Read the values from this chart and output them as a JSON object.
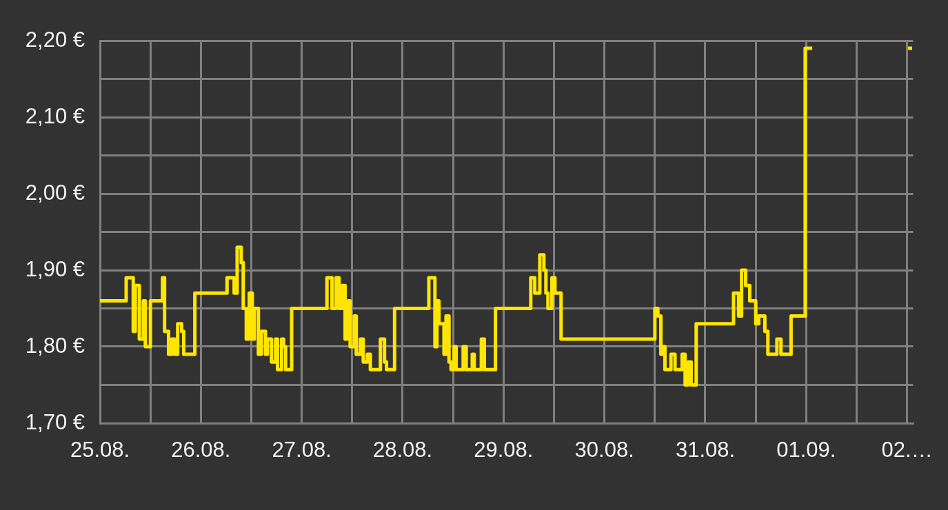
{
  "chart_data": {
    "type": "step",
    "color": "#ffe500",
    "x": [
      "--08-25T00:00",
      "--08-25T06:14",
      "--08-25T07:55",
      "--08-25T08:24",
      "--08-25T09:22",
      "--08-25T10:19",
      "--08-25T10:48",
      "--08-25T12:00",
      "--08-25T14:53",
      "--08-25T15:22",
      "--08-25T16:19",
      "--08-25T17:02",
      "--08-25T17:46",
      "--08-25T18:29",
      "--08-25T19:26",
      "--08-25T19:55",
      "--08-25T22:34",
      "--08-26T06:14",
      "--08-26T07:55",
      "--08-26T08:38",
      "--08-26T09:36",
      "--08-26T10:05",
      "--08-26T10:48",
      "--08-26T11:31",
      "--08-26T12:14",
      "--08-26T12:43",
      "--08-26T13:41",
      "--08-26T14:24",
      "--08-26T15:22",
      "--08-26T15:50",
      "--08-26T16:48",
      "--08-26T17:46",
      "--08-26T18:14",
      "--08-26T19:12",
      "--08-26T19:41",
      "--08-26T20:10",
      "--08-26T21:36",
      "--08-27T06:00",
      "--08-27T07:12",
      "--08-27T08:10",
      "--08-27T08:53",
      "--08-27T09:36",
      "--08-27T10:19",
      "--08-27T11:02",
      "--08-27T11:31",
      "--08-27T12:29",
      "--08-27T12:58",
      "--08-27T13:55",
      "--08-27T14:38",
      "--08-27T15:36",
      "--08-27T16:19",
      "--08-27T18:43",
      "--08-27T19:41",
      "--08-27T20:10",
      "--08-27T22:05",
      "--08-28T06:14",
      "--08-28T07:41",
      "--08-28T08:10",
      "--08-28T08:38",
      "--08-28T09:50",
      "--08-28T10:19",
      "--08-28T11:02",
      "--08-28T11:31",
      "--08-28T12:14",
      "--08-28T12:43",
      "--08-28T14:24",
      "--08-28T15:07",
      "--08-28T16:34",
      "--08-28T17:02",
      "--08-28T18:43",
      "--08-28T19:26",
      "--08-28T22:05",
      "--08-29T06:29",
      "--08-29T07:26",
      "--08-29T08:38",
      "--08-29T09:36",
      "--08-29T10:05",
      "--08-29T10:34",
      "--08-29T11:31",
      "--08-29T12:14",
      "--08-29T13:41",
      "--08-30T12:00",
      "--08-30T12:43",
      "--08-30T13:26",
      "--08-30T13:55",
      "--08-30T14:24",
      "--08-30T15:50",
      "--08-30T16:48",
      "--08-30T18:29",
      "--08-30T19:12",
      "--08-30T19:55",
      "--08-30T20:38",
      "--08-30T21:50",
      "--08-31T06:43",
      "--08-31T07:55",
      "--08-31T08:38",
      "--08-31T09:36",
      "--08-31T10:34",
      "--08-31T12:00",
      "--08-31T12:43",
      "--08-31T14:10",
      "--08-31T14:53",
      "--08-31T17:02",
      "--08-31T18:00",
      "--08-31T20:24",
      "--08-31T23:46",
      "--09-01T01:26",
      "--09-01T01:41",
      "--09-02T00:14",
      "--09-02T01:12"
    ],
    "values": [
      1.86,
      1.89,
      1.82,
      1.88,
      1.81,
      1.86,
      1.8,
      1.86,
      1.89,
      1.82,
      1.79,
      1.81,
      1.79,
      1.83,
      1.82,
      1.79,
      1.87,
      1.89,
      1.87,
      1.93,
      1.91,
      1.85,
      1.81,
      1.87,
      1.81,
      1.85,
      1.79,
      1.82,
      1.79,
      1.81,
      1.78,
      1.81,
      1.77,
      1.81,
      1.8,
      1.77,
      1.85,
      1.89,
      1.85,
      1.89,
      1.85,
      1.88,
      1.81,
      1.86,
      1.8,
      1.84,
      1.79,
      1.81,
      1.78,
      1.79,
      1.77,
      1.81,
      1.78,
      1.77,
      1.85,
      1.89,
      1.8,
      1.86,
      1.83,
      1.79,
      1.84,
      1.78,
      1.77,
      1.8,
      1.77,
      1.8,
      1.77,
      1.79,
      1.77,
      1.81,
      1.77,
      1.85,
      1.89,
      1.87,
      1.92,
      1.9,
      1.87,
      1.85,
      1.89,
      1.87,
      1.81,
      1.85,
      1.84,
      1.79,
      1.8,
      1.77,
      1.79,
      1.77,
      1.79,
      1.75,
      1.78,
      1.75,
      1.83,
      1.87,
      1.84,
      1.9,
      1.88,
      1.86,
      1.83,
      1.84,
      1.82,
      1.79,
      1.81,
      1.79,
      1.84,
      2.19,
      2.19,
      null,
      2.19,
      2.19
    ],
    "xlim": [
      "--08-25T00:00",
      "--09-02T01:26"
    ],
    "xticks": [
      {
        "value": "--08-25T00:00",
        "label": "25.08."
      },
      {
        "value": "--08-25T12:00",
        "label": null
      },
      {
        "value": "--08-26T00:00",
        "label": "26.08."
      },
      {
        "value": "--08-26T12:00",
        "label": null
      },
      {
        "value": "--08-27T00:00",
        "label": "27.08."
      },
      {
        "value": "--08-27T12:00",
        "label": null
      },
      {
        "value": "--08-28T00:00",
        "label": "28.08."
      },
      {
        "value": "--08-28T12:00",
        "label": null
      },
      {
        "value": "--08-29T00:00",
        "label": "29.08."
      },
      {
        "value": "--08-29T12:00",
        "label": null
      },
      {
        "value": "--08-30T00:00",
        "label": "30.08."
      },
      {
        "value": "--08-30T12:00",
        "label": null
      },
      {
        "value": "--08-31T00:00",
        "label": "31.08."
      },
      {
        "value": "--08-31T12:00",
        "label": null
      },
      {
        "value": "--09-01T00:00",
        "label": "01.09."
      },
      {
        "value": "--09-01T12:00",
        "label": null
      },
      {
        "value": "--09-02T00:00",
        "label": "02.…"
      }
    ],
    "ylim": [
      1.7,
      2.2
    ],
    "yticks": [
      {
        "value": 1.7,
        "label": "1,70 €"
      },
      {
        "value": 1.75,
        "label": null
      },
      {
        "value": 1.8,
        "label": "1,80 €"
      },
      {
        "value": 1.85,
        "label": null
      },
      {
        "value": 1.9,
        "label": "1,90 €"
      },
      {
        "value": 1.95,
        "label": null
      },
      {
        "value": 2.0,
        "label": "2,00 €"
      },
      {
        "value": 2.05,
        "label": null
      },
      {
        "value": 2.1,
        "label": "2,10 €"
      },
      {
        "value": 2.15,
        "label": null
      },
      {
        "value": 2.2,
        "label": "2,20 €"
      }
    ],
    "grid": true,
    "marker": "none",
    "line_style": "solid"
  }
}
